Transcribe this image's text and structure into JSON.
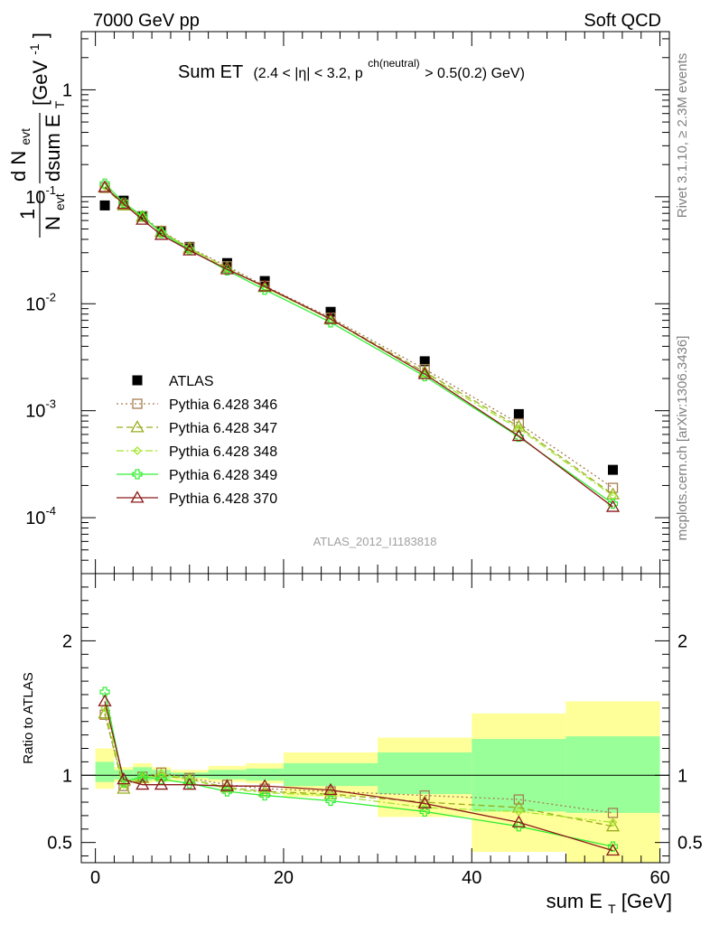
{
  "header": {
    "left": "7000 GeV pp",
    "right": "Soft QCD"
  },
  "side_labels": {
    "rivet": "Rivet 3.1.10, ≥ 2.3M events",
    "mcplots": "mcplots.cern.ch [arXiv:1306.3436]"
  },
  "plot_title": {
    "main": "Sum ET",
    "cond_a": "(2.4 < |η| < 3.2, p",
    "cond_sup": "ch(neutral)",
    "cond_b": " > 0.5(0.2) GeV)"
  },
  "watermark": "ATLAS_2012_I1183818",
  "y_label_main": {
    "frac_num": "1",
    "frac_den_N": "N",
    "frac_den_sub": "evt",
    "d_N": "d N",
    "d_N_sub": "evt",
    "dsum": "dsum E",
    "dsum_sub": "T",
    "unit": "[GeV",
    "unit_sup": "-1",
    "unit_close": "]"
  },
  "y_label_ratio": "Ratio to ATLAS",
  "x_label": {
    "text": "sum E",
    "sub": "T",
    "unit": " [GeV]"
  },
  "chart_data": [
    {
      "type": "scatter",
      "panel": "main",
      "yscale": "log",
      "xlim": [
        -1.5,
        61
      ],
      "ylim": [
        3e-05,
        3.5
      ],
      "y_ticks": [
        {
          "base": "10",
          "exp": "-4",
          "value": 0.0001
        },
        {
          "base": "10",
          "exp": "-3",
          "value": 0.001
        },
        {
          "base": "10",
          "exp": "-2",
          "value": 0.01
        },
        {
          "base": "10",
          "exp": "-1",
          "value": 0.1
        },
        {
          "base": "1",
          "exp": "",
          "value": 1
        }
      ],
      "x": [
        1,
        3,
        5,
        7,
        10,
        14,
        18,
        25,
        35,
        45,
        55
      ],
      "series": [
        {
          "name": "ATLAS",
          "color": "#000000",
          "marker": "filled-square",
          "line": "none",
          "values": [
            0.083,
            0.092,
            0.066,
            0.047,
            0.034,
            0.024,
            0.0163,
            0.0084,
            0.0029,
            0.00093,
            0.00028
          ]
        },
        {
          "name": "Pythia 6.428 346",
          "color": "#a67c52",
          "marker": "open-square",
          "line": "dotted",
          "values": [
            0.121,
            0.085,
            0.066,
            0.048,
            0.0335,
            0.0224,
            0.0147,
            0.0074,
            0.00245,
            0.00076,
            0.00019
          ]
        },
        {
          "name": "Pythia 6.428 347",
          "color": "#9aad1e",
          "marker": "open-triangle",
          "line": "dashed",
          "values": [
            0.122,
            0.083,
            0.065,
            0.047,
            0.033,
            0.0217,
            0.0143,
            0.0072,
            0.0023,
            0.00071,
            0.000165
          ]
        },
        {
          "name": "Pythia 6.428 348",
          "color": "#a3e62e",
          "marker": "open-diamond",
          "line": "dashdot",
          "values": [
            0.125,
            0.086,
            0.065,
            0.047,
            0.033,
            0.0215,
            0.0142,
            0.0071,
            0.0022,
            0.00068,
            0.00016
          ]
        },
        {
          "name": "Pythia 6.428 349",
          "color": "#33ee33",
          "marker": "open-cross",
          "line": "solid",
          "values": [
            0.133,
            0.088,
            0.066,
            0.046,
            0.032,
            0.0205,
            0.0135,
            0.0067,
            0.0021,
            0.00057,
            0.000135
          ]
        },
        {
          "name": "Pythia 6.428 370",
          "color": "#8b1a1a",
          "marker": "open-triangle",
          "line": "solid",
          "values": [
            0.123,
            0.086,
            0.061,
            0.044,
            0.0315,
            0.021,
            0.0145,
            0.0072,
            0.0022,
            0.00058,
            0.000126
          ]
        }
      ]
    },
    {
      "type": "line",
      "panel": "ratio",
      "xlim": [
        -1.5,
        61
      ],
      "ylim": [
        0.35,
        2.5
      ],
      "x_ticks": [
        0,
        20,
        40,
        60
      ],
      "y_ticks": [
        0.5,
        1,
        2
      ],
      "bands": [
        {
          "x0": 0,
          "x1": 2,
          "yellow": [
            0.9,
            1.2
          ],
          "green": [
            0.95,
            1.1
          ]
        },
        {
          "x0": 2,
          "x1": 4,
          "yellow": [
            0.95,
            1.06
          ],
          "green": [
            0.97,
            1.04
          ]
        },
        {
          "x0": 4,
          "x1": 6,
          "yellow": [
            0.94,
            1.09
          ],
          "green": [
            0.96,
            1.06
          ]
        },
        {
          "x0": 6,
          "x1": 8,
          "yellow": [
            0.95,
            1.06
          ],
          "green": [
            0.97,
            1.04
          ]
        },
        {
          "x0": 8,
          "x1": 12,
          "yellow": [
            0.96,
            1.04
          ],
          "green": [
            0.98,
            1.02
          ]
        },
        {
          "x0": 12,
          "x1": 16,
          "yellow": [
            0.95,
            1.07
          ],
          "green": [
            0.97,
            1.04
          ]
        },
        {
          "x0": 16,
          "x1": 20,
          "yellow": [
            0.94,
            1.09
          ],
          "green": [
            0.96,
            1.05
          ]
        },
        {
          "x0": 20,
          "x1": 30,
          "yellow": [
            0.84,
            1.17
          ],
          "green": [
            0.92,
            1.09
          ]
        },
        {
          "x0": 30,
          "x1": 40,
          "yellow": [
            0.69,
            1.28
          ],
          "green": [
            0.86,
            1.17
          ]
        },
        {
          "x0": 40,
          "x1": 50,
          "yellow": [
            0.43,
            1.46
          ],
          "green": [
            0.73,
            1.27
          ]
        },
        {
          "x0": 50,
          "x1": 60,
          "yellow": [
            0.33,
            1.55
          ],
          "green": [
            0.72,
            1.29
          ]
        }
      ],
      "x": [
        1,
        3,
        5,
        7,
        10,
        14,
        18,
        25,
        35,
        45,
        55
      ],
      "series": [
        {
          "name": "Pythia 6.428 346",
          "color": "#a67c52",
          "marker": "open-square",
          "line": "dotted",
          "values": [
            1.45,
            0.92,
            0.99,
            1.02,
            0.98,
            0.93,
            0.9,
            0.88,
            0.85,
            0.82,
            0.72
          ]
        },
        {
          "name": "Pythia 6.428 347",
          "color": "#9aad1e",
          "marker": "open-triangle",
          "line": "dashed",
          "values": [
            1.46,
            0.9,
            0.98,
            1.0,
            0.97,
            0.91,
            0.88,
            0.86,
            0.8,
            0.76,
            0.62
          ]
        },
        {
          "name": "Pythia 6.428 348",
          "color": "#a3e62e",
          "marker": "open-diamond",
          "line": "dashdot",
          "values": [
            1.5,
            0.93,
            0.98,
            1.01,
            0.97,
            0.9,
            0.87,
            0.85,
            0.76,
            0.73,
            0.65
          ]
        },
        {
          "name": "Pythia 6.428 349",
          "color": "#33ee33",
          "marker": "open-cross",
          "line": "solid",
          "values": [
            1.62,
            0.95,
            0.99,
            0.97,
            0.94,
            0.88,
            0.85,
            0.81,
            0.73,
            0.62,
            0.47
          ]
        },
        {
          "name": "Pythia 6.428 370",
          "color": "#8b1a1a",
          "marker": "open-triangle",
          "line": "solid",
          "values": [
            1.55,
            0.97,
            0.93,
            0.93,
            0.93,
            0.92,
            0.92,
            0.89,
            0.79,
            0.65,
            0.44
          ]
        }
      ]
    }
  ]
}
